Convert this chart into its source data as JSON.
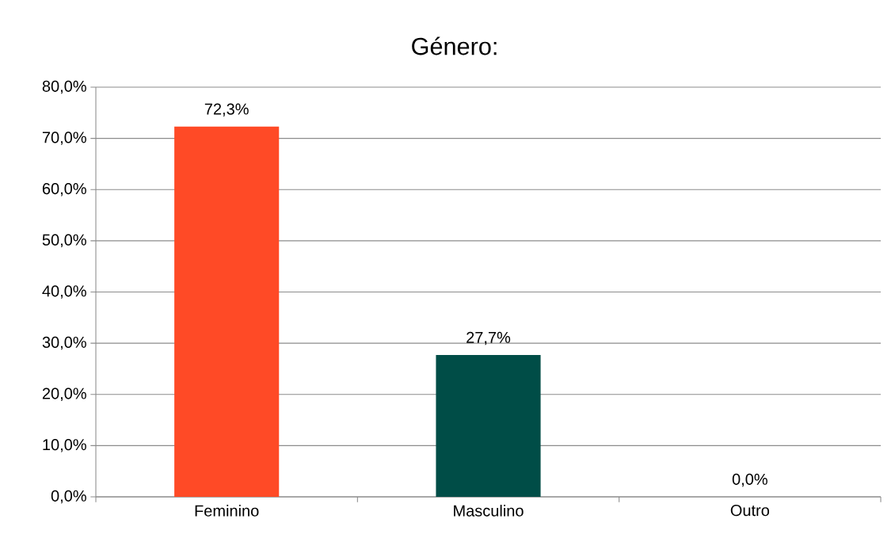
{
  "chart_data": {
    "type": "bar",
    "title": "Género:",
    "categories": [
      "Feminino",
      "Masculino",
      "Outro"
    ],
    "values": [
      72.3,
      27.7,
      0.0
    ],
    "colors": [
      "#ff4a26",
      "#004d47",
      "#4472c4"
    ],
    "value_labels": [
      "72,3%",
      "27,7%",
      "0,0%"
    ],
    "ylim": [
      0,
      80
    ],
    "yticks": [
      {
        "value": 0,
        "label": "0,0%"
      },
      {
        "value": 10,
        "label": "10,0%"
      },
      {
        "value": 20,
        "label": "20,0%"
      },
      {
        "value": 30,
        "label": "30,0%"
      },
      {
        "value": 40,
        "label": "40,0%"
      },
      {
        "value": 50,
        "label": "50,0%"
      },
      {
        "value": 60,
        "label": "60,0%"
      },
      {
        "value": 70,
        "label": "70,0%"
      },
      {
        "value": 80,
        "label": "80,0%"
      }
    ],
    "grid": "y"
  }
}
